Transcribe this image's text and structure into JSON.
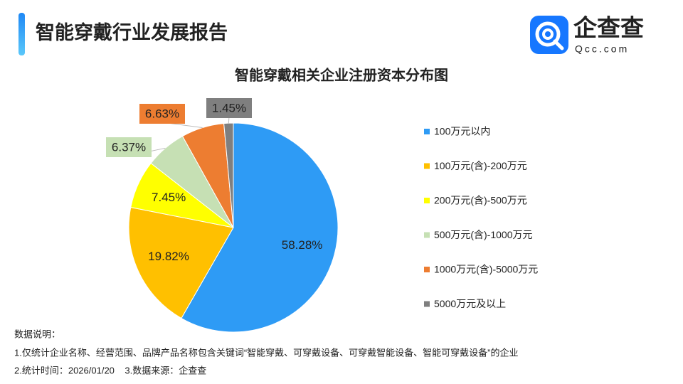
{
  "header": {
    "title": "智能穿戴行业发展报告",
    "logo_text": "企查查",
    "logo_sub": "Qcc.com"
  },
  "chart_data": {
    "type": "pie",
    "title": "智能穿戴相关企业注册资本分布图",
    "categories": [
      "100万元以内",
      "100万元(含)-200万元",
      "200万元(含)-500万元",
      "500万元(含)-1000万元",
      "1000万元(含)-5000万元",
      "5000万元及以上"
    ],
    "values": [
      58.28,
      19.82,
      7.45,
      6.37,
      6.63,
      1.45
    ],
    "value_labels": [
      "58.28%",
      "19.82%",
      "7.45%",
      "6.37%",
      "6.63%",
      "1.45%"
    ],
    "colors": [
      "#2e9bf5",
      "#ffc000",
      "#ffff00",
      "#c6e0b4",
      "#ed7d31",
      "#7f7f7f"
    ]
  },
  "notes": [
    "数据说明：",
    "1.仅统计企业名称、经营范围、品牌产品名称包含关键词“智能穿戴、可穿戴设备、可穿戴智能设备、智能可穿戴设备”的企业",
    "2.统计时间：2026/01/20    3.数据来源：企查查"
  ]
}
